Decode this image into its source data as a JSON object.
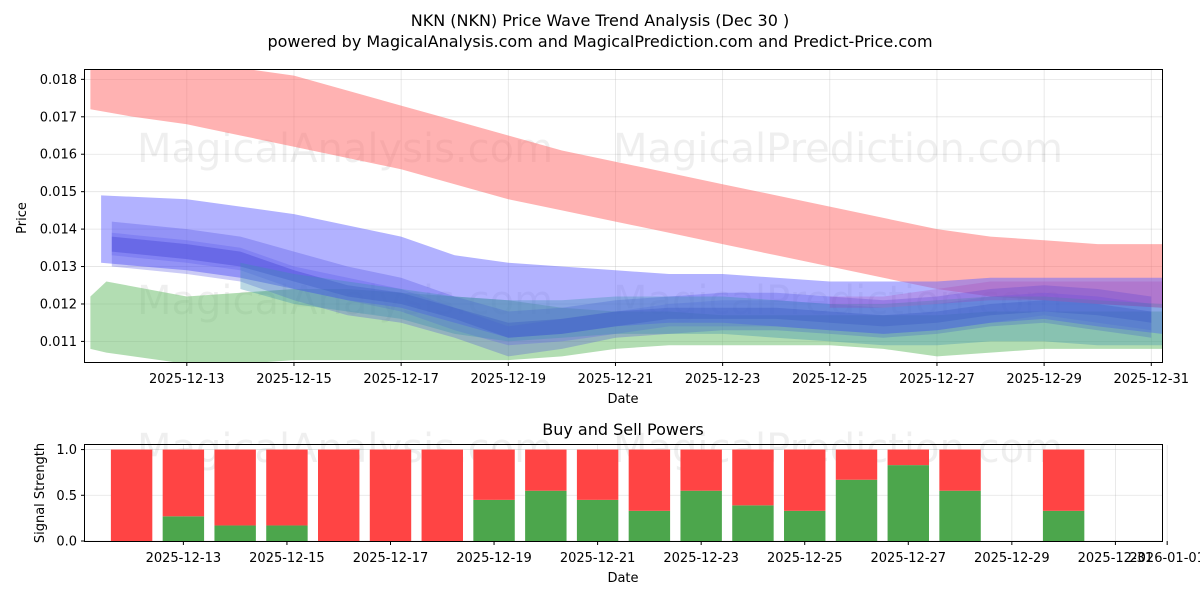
{
  "chart_data": [
    {
      "type": "area",
      "title": "NKN (NKN) Price Wave Trend Analysis (Dec 30 )",
      "subtitle": "powered by MagicalAnalysis.com and MagicalPrediction.com and Predict-Price.com",
      "xlabel": "Date",
      "ylabel": "Price",
      "xlim": [
        -0.9,
        19.2
      ],
      "ylim": [
        0.01045,
        0.01825
      ],
      "grid": true,
      "x_ticks": [
        1,
        3,
        5,
        7,
        9,
        11,
        13,
        15,
        17,
        19
      ],
      "x_tick_labels": [
        "2025-12-13",
        "2025-12-15",
        "2025-12-17",
        "2025-12-19",
        "2025-12-21",
        "2025-12-23",
        "2025-12-25",
        "2025-12-27",
        "2025-12-29",
        "2025-12-31"
      ],
      "y_ticks": [
        0.011,
        0.012,
        0.013,
        0.014,
        0.015,
        0.016,
        0.017,
        0.018
      ],
      "y_tick_labels": [
        "0.011",
        "0.012",
        "0.013",
        "0.014",
        "0.015",
        "0.016",
        "0.017",
        "0.018"
      ],
      "bands": [
        {
          "name": "upper-wave",
          "color": "#ff6666",
          "opacity": 0.5,
          "x": [
            -0.8,
            0,
            1,
            2,
            3,
            4,
            5,
            6,
            7,
            8,
            9,
            10,
            11,
            12,
            13,
            14,
            15,
            16,
            17,
            18,
            19.2
          ],
          "low": [
            0.0172,
            0.017,
            0.0168,
            0.0165,
            0.0162,
            0.0159,
            0.0156,
            0.0152,
            0.0148,
            0.0145,
            0.0142,
            0.0139,
            0.0136,
            0.0133,
            0.013,
            0.0127,
            0.0124,
            0.0122,
            0.0121,
            0.012,
            0.0119
          ],
          "high": [
            0.0183,
            0.0183,
            0.0183,
            0.0183,
            0.0181,
            0.0177,
            0.0173,
            0.0169,
            0.0165,
            0.0161,
            0.0158,
            0.0155,
            0.0152,
            0.0149,
            0.0146,
            0.0143,
            0.014,
            0.0138,
            0.0137,
            0.0136,
            0.0136
          ]
        },
        {
          "name": "lower-wave",
          "color": "#66bb66",
          "opacity": 0.5,
          "x": [
            -0.8,
            -0.5,
            1,
            2,
            3,
            4,
            5,
            6,
            7,
            8,
            9,
            10,
            11,
            12,
            13,
            14,
            15,
            16,
            17,
            18,
            19.2
          ],
          "low": [
            0.0108,
            0.0107,
            0.0104,
            0.0104,
            0.0105,
            0.0105,
            0.0105,
            0.0105,
            0.0105,
            0.0106,
            0.0108,
            0.0109,
            0.0109,
            0.0109,
            0.0109,
            0.0108,
            0.0106,
            0.0107,
            0.0108,
            0.0108,
            0.0108
          ],
          "high": [
            0.0122,
            0.0126,
            0.0122,
            0.0123,
            0.0124,
            0.0124,
            0.0123,
            0.0122,
            0.0121,
            0.0119,
            0.0118,
            0.0118,
            0.0117,
            0.0117,
            0.0117,
            0.0117,
            0.0117,
            0.0118,
            0.0118,
            0.0118,
            0.0118
          ]
        },
        {
          "name": "mid-wave-outer",
          "color": "#6666ff",
          "opacity": 0.5,
          "x": [
            -0.6,
            1,
            2,
            3,
            4,
            5,
            6,
            7,
            8,
            9,
            10,
            11,
            12,
            13,
            14,
            15,
            16,
            17,
            18,
            19.2
          ],
          "low": [
            0.0131,
            0.0129,
            0.0127,
            0.0124,
            0.0121,
            0.0119,
            0.0115,
            0.0111,
            0.0112,
            0.0114,
            0.0115,
            0.0115,
            0.0114,
            0.0113,
            0.0112,
            0.0113,
            0.0115,
            0.0116,
            0.0114,
            0.0112
          ],
          "high": [
            0.0149,
            0.0148,
            0.0146,
            0.0144,
            0.0141,
            0.0138,
            0.0133,
            0.0131,
            0.013,
            0.0129,
            0.0128,
            0.0128,
            0.0127,
            0.0126,
            0.0126,
            0.0126,
            0.0127,
            0.0127,
            0.0127,
            0.0127
          ]
        },
        {
          "name": "mid-wave-1",
          "color": "#4444dd",
          "opacity": 0.28,
          "x": [
            -0.4,
            1,
            2,
            3,
            4,
            5,
            6,
            7,
            8,
            9,
            10,
            11,
            12,
            13,
            14,
            15,
            16,
            17,
            18,
            19
          ],
          "low": [
            0.013,
            0.0128,
            0.0126,
            0.0121,
            0.0117,
            0.0115,
            0.0111,
            0.0106,
            0.0108,
            0.0111,
            0.0112,
            0.0113,
            0.0113,
            0.0112,
            0.0111,
            0.0112,
            0.0114,
            0.0115,
            0.0113,
            0.0111
          ],
          "high": [
            0.0142,
            0.014,
            0.0138,
            0.0134,
            0.013,
            0.0127,
            0.0122,
            0.0118,
            0.0119,
            0.0121,
            0.0122,
            0.0123,
            0.0123,
            0.0122,
            0.0121,
            0.0122,
            0.0124,
            0.0125,
            0.0124,
            0.0122
          ]
        },
        {
          "name": "mid-wave-2",
          "color": "#5555ee",
          "opacity": 0.28,
          "x": [
            -0.4,
            1,
            2,
            3,
            4,
            5,
            6,
            7,
            8,
            9,
            10,
            11,
            12,
            13,
            14,
            15,
            16,
            17,
            18,
            19
          ],
          "low": [
            0.0133,
            0.0131,
            0.0129,
            0.0124,
            0.0121,
            0.0118,
            0.0113,
            0.0109,
            0.011,
            0.0112,
            0.0114,
            0.0114,
            0.0114,
            0.0113,
            0.0112,
            0.0113,
            0.0115,
            0.0117,
            0.0115,
            0.0113
          ],
          "high": [
            0.0139,
            0.0137,
            0.0135,
            0.013,
            0.0127,
            0.0124,
            0.0119,
            0.0114,
            0.0116,
            0.0118,
            0.012,
            0.0121,
            0.0121,
            0.012,
            0.0119,
            0.012,
            0.0122,
            0.0123,
            0.0122,
            0.012
          ]
        },
        {
          "name": "mid-wave-3",
          "color": "#3333cc",
          "opacity": 0.3,
          "x": [
            -0.4,
            1,
            2,
            3,
            4,
            5,
            6,
            7,
            8,
            9,
            10,
            11,
            12,
            13,
            14,
            15,
            16,
            17,
            18,
            19
          ],
          "low": [
            0.0134,
            0.0132,
            0.013,
            0.0126,
            0.0122,
            0.012,
            0.0116,
            0.0111,
            0.0112,
            0.0114,
            0.0116,
            0.0116,
            0.0116,
            0.0115,
            0.0114,
            0.0115,
            0.0117,
            0.0118,
            0.0117,
            0.0115
          ],
          "high": [
            0.0138,
            0.0136,
            0.0134,
            0.0129,
            0.0125,
            0.0123,
            0.0119,
            0.0115,
            0.0116,
            0.0118,
            0.0119,
            0.0119,
            0.0119,
            0.0118,
            0.0117,
            0.0118,
            0.012,
            0.0121,
            0.012,
            0.0118
          ]
        },
        {
          "name": "teal-wave",
          "color": "#3a8fb0",
          "opacity": 0.35,
          "x": [
            2,
            3,
            4,
            5,
            6,
            7,
            8,
            9,
            10,
            11,
            12,
            13,
            14,
            15,
            16,
            17,
            18,
            19.2
          ],
          "low": [
            0.0124,
            0.012,
            0.0118,
            0.0116,
            0.0112,
            0.011,
            0.0111,
            0.0112,
            0.0112,
            0.0112,
            0.0111,
            0.011,
            0.0109,
            0.0109,
            0.011,
            0.011,
            0.0109,
            0.0109
          ],
          "high": [
            0.0131,
            0.0128,
            0.0126,
            0.0124,
            0.0122,
            0.0121,
            0.0121,
            0.0122,
            0.0122,
            0.0122,
            0.0121,
            0.012,
            0.012,
            0.0121,
            0.0122,
            0.0122,
            0.0121,
            0.012
          ]
        },
        {
          "name": "purple-wave",
          "color": "#aa33aa",
          "opacity": 0.22,
          "x": [
            13,
            14,
            15,
            16,
            17,
            18,
            19.2
          ],
          "low": [
            0.0119,
            0.0119,
            0.012,
            0.0121,
            0.0121,
            0.012,
            0.0119
          ],
          "high": [
            0.0122,
            0.0122,
            0.0124,
            0.0126,
            0.0126,
            0.0126,
            0.0126
          ]
        }
      ],
      "watermarks": [
        "MagicalAnalysis.com",
        "MagicalPrediction.com",
        "MagicalAnalysis.com",
        "MagicalPrediction.com"
      ]
    },
    {
      "type": "bar",
      "title": "Buy and Sell Powers",
      "xlabel": "Date",
      "ylabel": "Signal Strength",
      "xlim": [
        -0.9,
        19.9
      ],
      "ylim": [
        0,
        1.05
      ],
      "grid": true,
      "x_ticks": [
        1,
        3,
        5,
        7,
        9,
        11,
        13,
        15,
        17,
        19,
        20
      ],
      "x_tick_labels": [
        "2025-12-13",
        "2025-12-15",
        "2025-12-17",
        "2025-12-19",
        "2025-12-21",
        "2025-12-23",
        "2025-12-25",
        "2025-12-27",
        "2025-12-29",
        "2025-12-31",
        "2026-01-01"
      ],
      "y_ticks": [
        0,
        0.5,
        1
      ],
      "y_tick_labels": [
        "0.0",
        "0.5",
        "1.0"
      ],
      "series": [
        {
          "name": "Buy",
          "color": "#4ca64c",
          "x": [
            0,
            1,
            2,
            3,
            4,
            5,
            6,
            7,
            8,
            9,
            10,
            11,
            12,
            13,
            14,
            15,
            16,
            18
          ],
          "values": [
            0,
            0.27,
            0.17,
            0.17,
            0,
            0,
            0,
            0.45,
            0.55,
            0.45,
            0.33,
            0.55,
            0.39,
            0.33,
            0.67,
            0.83,
            0.55,
            0.33
          ]
        },
        {
          "name": "Sell",
          "color": "#ff4444",
          "x": [
            0,
            1,
            2,
            3,
            4,
            5,
            6,
            7,
            8,
            9,
            10,
            11,
            12,
            13,
            14,
            15,
            16,
            18
          ],
          "values": [
            1,
            0.73,
            0.83,
            0.83,
            1,
            1,
            1,
            0.55,
            0.45,
            0.55,
            0.67,
            0.45,
            0.61,
            0.67,
            0.33,
            0.17,
            0.45,
            0.67
          ]
        }
      ],
      "watermarks": [
        "MagicalAnalysis.com",
        "MagicalPrediction.com"
      ]
    }
  ]
}
